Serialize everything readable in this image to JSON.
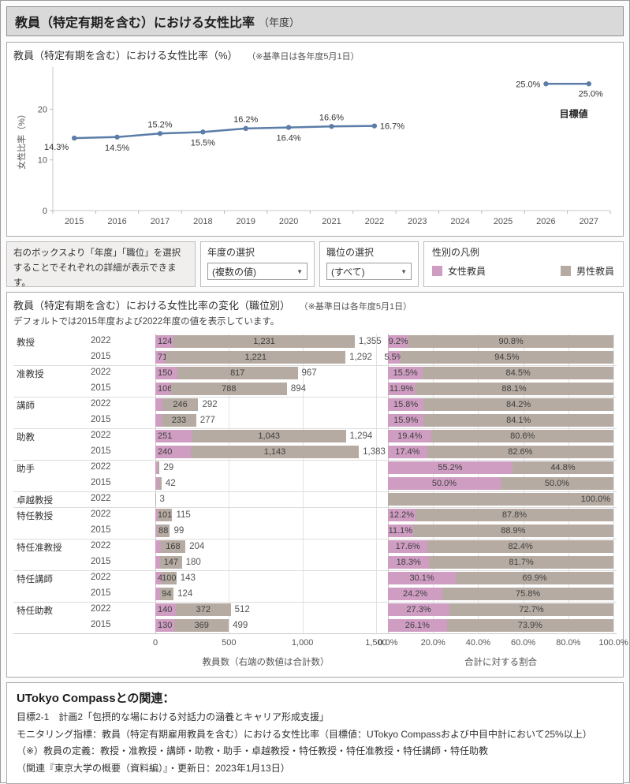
{
  "window": {
    "title": "教員（特定有期を含む）における女性比率",
    "title_suffix": "（年度）"
  },
  "line_section": {
    "title": "教員（特定有期を含む）における女性比率（%）",
    "note": "（※基準日は各年度5月1日）"
  },
  "filters": {
    "info_text": "右のボックスより「年度」「職位」を選択することでそれぞれの詳細が表示できます。",
    "year_filter": {
      "label": "年度の選択",
      "value": "(複数の値)"
    },
    "position_filter": {
      "label": "職位の選択",
      "value": "(すべて)"
    },
    "legend": {
      "title": "性別の凡例",
      "items": [
        {
          "label": "女性教員",
          "color": "#cf9dc2"
        },
        {
          "label": "男性教員",
          "color": "#b5aba2"
        }
      ]
    }
  },
  "bar_section": {
    "title": "教員（特定有期を含む）における女性比率の変化（職位別）",
    "note": "（※基準日は各年度5月1日）",
    "subtitle": "デフォルトでは2015年度および2022年度の値を表示しています。"
  },
  "footer": {
    "title": "UTokyo Compassとの関連：",
    "lines": [
      "目標2-1　計画2「包摂的な場における対話力の涵養とキャリア形成支援」",
      "モニタリング指標：教員（特定有期雇用教員を含む）における女性比率（目標値：UTokyo Compassおよび中目中計において25%以上）",
      "（※）教員の定義：教授・准教授・講師・助教・助手・卓越教授・特任教授・特任准教授・特任講師・特任助教",
      "（関連『東京大学の概要（資料編）』・更新日：2023年1月13日）"
    ]
  },
  "colors": {
    "female": "#cf9dc2",
    "male": "#b5aba2",
    "line": "#5b7da7"
  },
  "chart_data": [
    {
      "type": "line",
      "title": "教員（特定有期を含む）における女性比率（%）",
      "ylabel": "女性比率（%）",
      "x_years": [
        "2015",
        "2016",
        "2017",
        "2018",
        "2019",
        "2020",
        "2021",
        "2022",
        "2023",
        "2024",
        "2025",
        "2026",
        "2027"
      ],
      "yticks": [
        "0",
        "10",
        "20"
      ],
      "ylim": [
        0,
        28
      ],
      "color": "#5b7da7",
      "series": [
        {
          "name": "女性比率",
          "year_index": [
            0,
            1,
            2,
            3,
            4,
            5,
            6,
            7
          ],
          "values": [
            14.3,
            14.5,
            15.2,
            15.5,
            16.2,
            16.4,
            16.6,
            16.7
          ],
          "labels": [
            "14.3%",
            "14.5%",
            "15.2%",
            "15.5%",
            "16.2%",
            "16.4%",
            "16.6%",
            "16.7%"
          ],
          "label_positions": [
            "left-below",
            "below",
            "above",
            "below",
            "above",
            "below",
            "above",
            "right"
          ]
        },
        {
          "name": "目標値",
          "year_index": [
            11,
            12
          ],
          "values": [
            25.0,
            25.0
          ],
          "labels": [
            "25.0%",
            "25.0%"
          ],
          "label_positions": [
            "left",
            "below-right"
          ],
          "annotation": "目標値"
        }
      ]
    },
    {
      "type": "bar",
      "title": "教員（特定有期を含む）における女性比率の変化（職位別）",
      "legend": [
        "女性教員",
        "男性教員"
      ],
      "count_axis": {
        "max": 1500,
        "ticks": [
          {
            "value": 0,
            "label": "0"
          },
          {
            "value": 500,
            "label": "500"
          },
          {
            "value": 1000,
            "label": "1,000"
          },
          {
            "value": 1500,
            "label": "1,500"
          }
        ],
        "caption": "教員数（右端の数値は合計数）"
      },
      "pct_axis": {
        "ticks": [
          "0.0%",
          "20.0%",
          "40.0%",
          "60.0%",
          "80.0%",
          "100.0%"
        ],
        "caption": "合計に対する割合"
      },
      "groups": [
        {
          "label": "教授",
          "rows": [
            {
              "year": "2022",
              "female": 124,
              "male": 1231,
              "total": 1355,
              "female_label": "124",
              "male_label": "1,231",
              "total_label": "1,355",
              "pct_female": 9.2,
              "pct_male": 90.8,
              "pct_female_label": "9.2%",
              "pct_male_label": "90.8%"
            },
            {
              "year": "2015",
              "female": 71,
              "male": 1221,
              "total": 1292,
              "female_label": "71",
              "male_label": "1,221",
              "total_label": "1,292",
              "pct_female": 5.5,
              "pct_male": 94.5,
              "pct_female_label": "5.5%",
              "pct_male_label": "94.5%"
            }
          ]
        },
        {
          "label": "准教授",
          "rows": [
            {
              "year": "2022",
              "female": 150,
              "male": 817,
              "total": 967,
              "female_label": "150",
              "male_label": "817",
              "total_label": "967",
              "pct_female": 15.5,
              "pct_male": 84.5,
              "pct_female_label": "15.5%",
              "pct_male_label": "84.5%"
            },
            {
              "year": "2015",
              "female": 106,
              "male": 788,
              "total": 894,
              "female_label": "106",
              "male_label": "788",
              "total_label": "894",
              "pct_female": 11.9,
              "pct_male": 88.1,
              "pct_female_label": "11.9%",
              "pct_male_label": "88.1%"
            }
          ]
        },
        {
          "label": "講師",
          "rows": [
            {
              "year": "2022",
              "female": 46,
              "male": 246,
              "total": 292,
              "female_label": "",
              "male_label": "246",
              "total_label": "292",
              "pct_female": 15.8,
              "pct_male": 84.2,
              "pct_female_label": "15.8%",
              "pct_male_label": "84.2%"
            },
            {
              "year": "2015",
              "female": 44,
              "male": 233,
              "total": 277,
              "female_label": "",
              "male_label": "233",
              "total_label": "277",
              "pct_female": 15.9,
              "pct_male": 84.1,
              "pct_female_label": "15.9%",
              "pct_male_label": "84.1%"
            }
          ]
        },
        {
          "label": "助教",
          "rows": [
            {
              "year": "2022",
              "female": 251,
              "male": 1043,
              "total": 1294,
              "female_label": "251",
              "male_label": "1,043",
              "total_label": "1,294",
              "pct_female": 19.4,
              "pct_male": 80.6,
              "pct_female_label": "19.4%",
              "pct_male_label": "80.6%"
            },
            {
              "year": "2015",
              "female": 240,
              "male": 1143,
              "total": 1383,
              "female_label": "240",
              "male_label": "1,143",
              "total_label": "1,383",
              "pct_female": 17.4,
              "pct_male": 82.6,
              "pct_female_label": "17.4%",
              "pct_male_label": "82.6%"
            }
          ]
        },
        {
          "label": "助手",
          "rows": [
            {
              "year": "2022",
              "female": 16,
              "male": 13,
              "total": 29,
              "female_label": "",
              "male_label": "",
              "total_label": "29",
              "pct_female": 55.2,
              "pct_male": 44.8,
              "pct_female_label": "55.2%",
              "pct_male_label": "44.8%"
            },
            {
              "year": "2015",
              "female": 21,
              "male": 21,
              "total": 42,
              "female_label": "",
              "male_label": "",
              "total_label": "42",
              "pct_female": 50.0,
              "pct_male": 50.0,
              "pct_female_label": "50.0%",
              "pct_male_label": "50.0%"
            }
          ]
        },
        {
          "label": "卓越教授",
          "rows": [
            {
              "year": "2022",
              "female": 0,
              "male": 3,
              "total": 3,
              "female_label": "",
              "male_label": "",
              "total_label": "3",
              "pct_female": 0,
              "pct_male": 100.0,
              "pct_female_label": "",
              "pct_male_label": "100.0%",
              "pct_align": "right"
            }
          ]
        },
        {
          "label": "特任教授",
          "rows": [
            {
              "year": "2022",
              "female": 14,
              "male": 101,
              "total": 115,
              "female_label": "",
              "male_label": "101",
              "total_label": "115",
              "pct_female": 12.2,
              "pct_male": 87.8,
              "pct_female_label": "12.2%",
              "pct_male_label": "87.8%"
            },
            {
              "year": "2015",
              "female": 11,
              "male": 88,
              "total": 99,
              "female_label": "",
              "male_label": "88",
              "total_label": "99",
              "pct_female": 11.1,
              "pct_male": 88.9,
              "pct_female_label": "11.1%",
              "pct_male_label": "88.9%"
            }
          ]
        },
        {
          "label": "特任准教授",
          "rows": [
            {
              "year": "2022",
              "female": 36,
              "male": 168,
              "total": 204,
              "female_label": "",
              "male_label": "168",
              "total_label": "204",
              "pct_female": 17.6,
              "pct_male": 82.4,
              "pct_female_label": "17.6%",
              "pct_male_label": "82.4%"
            },
            {
              "year": "2015",
              "female": 33,
              "male": 147,
              "total": 180,
              "female_label": "",
              "male_label": "147",
              "total_label": "180",
              "pct_female": 18.3,
              "pct_male": 81.7,
              "pct_female_label": "18.3%",
              "pct_male_label": "81.7%"
            }
          ]
        },
        {
          "label": "特任講師",
          "rows": [
            {
              "year": "2022",
              "female": 43,
              "male": 100,
              "total": 143,
              "female_label": "43",
              "male_label": "100",
              "total_label": "143",
              "pct_female": 30.1,
              "pct_male": 69.9,
              "pct_female_label": "30.1%",
              "pct_male_label": "69.9%"
            },
            {
              "year": "2015",
              "female": 30,
              "male": 94,
              "total": 124,
              "female_label": "",
              "male_label": "94",
              "total_label": "124",
              "pct_female": 24.2,
              "pct_male": 75.8,
              "pct_female_label": "24.2%",
              "pct_male_label": "75.8%"
            }
          ]
        },
        {
          "label": "特任助教",
          "rows": [
            {
              "year": "2022",
              "female": 140,
              "male": 372,
              "total": 512,
              "female_label": "140",
              "male_label": "372",
              "total_label": "512",
              "pct_female": 27.3,
              "pct_male": 72.7,
              "pct_female_label": "27.3%",
              "pct_male_label": "72.7%"
            },
            {
              "year": "2015",
              "female": 130,
              "male": 369,
              "total": 499,
              "female_label": "130",
              "male_label": "369",
              "total_label": "499",
              "pct_female": 26.1,
              "pct_male": 73.9,
              "pct_female_label": "26.1%",
              "pct_male_label": "73.9%"
            }
          ]
        }
      ]
    }
  ]
}
